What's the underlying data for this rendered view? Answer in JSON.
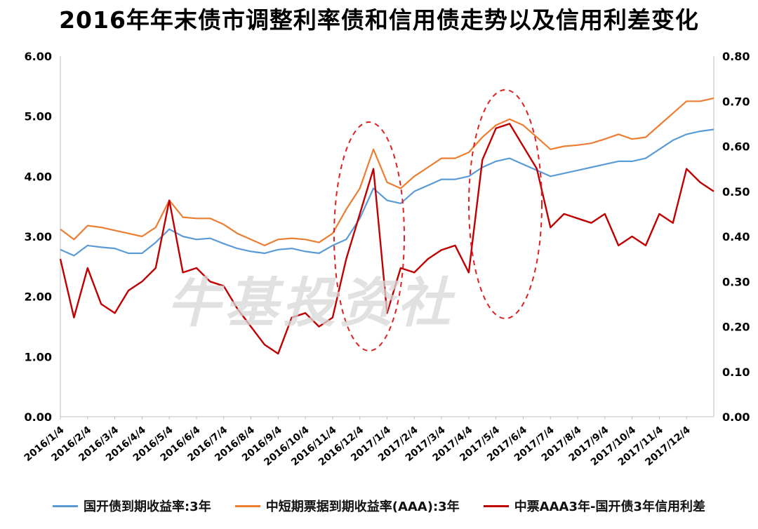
{
  "title": "2016年年末债市调整利率债和信用债走势以及信用利差变化",
  "watermark": "牛基投资社",
  "chart_data": {
    "type": "line",
    "x": [
      "2016/1/4",
      "2016/1/18",
      "2016/2/4",
      "2016/2/18",
      "2016/3/4",
      "2016/3/18",
      "2016/4/4",
      "2016/4/18",
      "2016/5/4",
      "2016/5/18",
      "2016/6/4",
      "2016/6/18",
      "2016/7/4",
      "2016/7/18",
      "2016/8/4",
      "2016/8/18",
      "2016/9/4",
      "2016/9/18",
      "2016/10/4",
      "2016/10/18",
      "2016/11/4",
      "2016/11/18",
      "2016/12/4",
      "2016/12/18",
      "2017/1/4",
      "2017/1/18",
      "2017/2/4",
      "2017/2/18",
      "2017/3/4",
      "2017/3/18",
      "2017/4/4",
      "2017/4/18",
      "2017/5/4",
      "2017/5/18",
      "2017/6/4",
      "2017/6/18",
      "2017/7/4",
      "2017/7/18",
      "2017/8/4",
      "2017/8/18",
      "2017/9/4",
      "2017/9/18",
      "2017/10/4",
      "2017/10/18",
      "2017/11/4",
      "2017/11/18",
      "2017/12/4",
      "2017/12/18",
      "2017/12/29"
    ],
    "xticks": [
      "2016/1/4",
      "2016/2/4",
      "2016/3/4",
      "2016/4/4",
      "2016/5/4",
      "2016/6/4",
      "2016/7/4",
      "2016/8/4",
      "2016/9/4",
      "2016/10/4",
      "2016/11/4",
      "2016/12/4",
      "2017/1/4",
      "2017/2/4",
      "2017/3/4",
      "2017/4/4",
      "2017/5/4",
      "2017/6/4",
      "2017/7/4",
      "2017/8/4",
      "2017/9/4",
      "2017/10/4",
      "2017/11/4",
      "2017/12/4"
    ],
    "y_left": {
      "ylim": [
        0,
        6
      ],
      "ticks": [
        "0.00",
        "1.00",
        "2.00",
        "3.00",
        "4.00",
        "5.00",
        "6.00"
      ]
    },
    "y_right": {
      "ylim": [
        0,
        0.8
      ],
      "ticks": [
        "0.00",
        "0.10",
        "0.20",
        "0.30",
        "0.40",
        "0.50",
        "0.60",
        "0.70",
        "0.80"
      ]
    },
    "series": [
      {
        "name": "国开债到期收益率:3年",
        "axis": "left",
        "color": "#5b9bd5",
        "values": [
          2.78,
          2.68,
          2.85,
          2.82,
          2.8,
          2.72,
          2.72,
          2.9,
          3.12,
          3.0,
          2.95,
          2.97,
          2.88,
          2.8,
          2.75,
          2.72,
          2.78,
          2.8,
          2.75,
          2.72,
          2.85,
          2.95,
          3.3,
          3.8,
          3.6,
          3.55,
          3.75,
          3.85,
          3.95,
          3.95,
          4.0,
          4.15,
          4.25,
          4.3,
          4.2,
          4.1,
          4.0,
          4.05,
          4.1,
          4.15,
          4.2,
          4.25,
          4.25,
          4.3,
          4.45,
          4.6,
          4.7,
          4.75,
          4.78
        ]
      },
      {
        "name": "中短期票据到期收益率(AAA):3年",
        "axis": "left",
        "color": "#ed7d31",
        "values": [
          3.12,
          2.95,
          3.18,
          3.15,
          3.1,
          3.05,
          3.0,
          3.15,
          3.6,
          3.32,
          3.3,
          3.3,
          3.2,
          3.05,
          2.95,
          2.85,
          2.95,
          2.97,
          2.95,
          2.9,
          3.05,
          3.45,
          3.8,
          4.45,
          3.9,
          3.8,
          4.0,
          4.15,
          4.3,
          4.3,
          4.4,
          4.65,
          4.85,
          4.95,
          4.85,
          4.65,
          4.45,
          4.5,
          4.52,
          4.55,
          4.62,
          4.7,
          4.62,
          4.65,
          4.85,
          5.05,
          5.25,
          5.25,
          5.3
        ]
      },
      {
        "name": "中票AAA3年-国开债3年信用利差",
        "axis": "right",
        "color": "#c00000",
        "values": [
          0.35,
          0.22,
          0.33,
          0.25,
          0.23,
          0.28,
          0.3,
          0.33,
          0.48,
          0.32,
          0.33,
          0.3,
          0.29,
          0.24,
          0.2,
          0.16,
          0.14,
          0.22,
          0.23,
          0.2,
          0.22,
          0.35,
          0.45,
          0.55,
          0.23,
          0.33,
          0.32,
          0.35,
          0.37,
          0.38,
          0.32,
          0.57,
          0.64,
          0.65,
          0.6,
          0.55,
          0.42,
          0.45,
          0.44,
          0.43,
          0.45,
          0.38,
          0.4,
          0.38,
          0.45,
          0.43,
          0.55,
          0.52,
          0.5
        ]
      }
    ],
    "legend_placement": "bottom",
    "grid": false
  }
}
